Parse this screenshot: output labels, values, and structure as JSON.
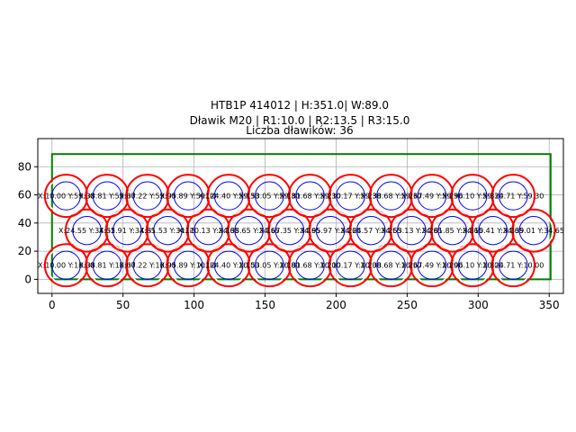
{
  "chart_data": {
    "type": "scatter",
    "title_lines": [
      "HTB1P 414012 | H:351.0| W:89.0",
      "Dławik M20 | R1:10.0 | R2:13.5 | R3:15.0",
      "Liczba dławików: 36"
    ],
    "xlabel": "",
    "ylabel": "",
    "xlim": [
      -10.0,
      360.0
    ],
    "ylim": [
      -10.0,
      100.0
    ],
    "xticks": [
      0,
      50,
      100,
      150,
      200,
      250,
      300,
      350
    ],
    "yticks": [
      0,
      20,
      40,
      60,
      80
    ],
    "grid": true,
    "box": {
      "x0": 0,
      "y0": 0,
      "x1": 351.0,
      "y1": 89.0,
      "color": "#008000"
    },
    "radii": {
      "r1": 10.0,
      "r2": 13.5,
      "r3": 15.0
    },
    "ring_colors": {
      "r1": "#0000ff",
      "r2": "#ffffff",
      "r3": "#ff0000"
    },
    "rows": [
      {
        "y": 10.0,
        "x": [
          10.0,
          38.81,
          67.22,
          95.89,
          124.4,
          153.05,
          181.68,
          210.17,
          238.68,
          267.49,
          296.1,
          324.71
        ]
      },
      {
        "y": 34.65,
        "x": [
          24.55,
          52.91,
          81.53,
          110.13,
          138.65,
          167.35,
          195.97,
          224.57,
          253.13,
          281.85,
          310.41,
          339.01
        ]
      },
      {
        "y": 59.3,
        "x": [
          10.0,
          38.81,
          67.22,
          95.89,
          124.4,
          153.05,
          181.68,
          210.17,
          238.68,
          267.49,
          296.1,
          324.71
        ]
      }
    ]
  }
}
